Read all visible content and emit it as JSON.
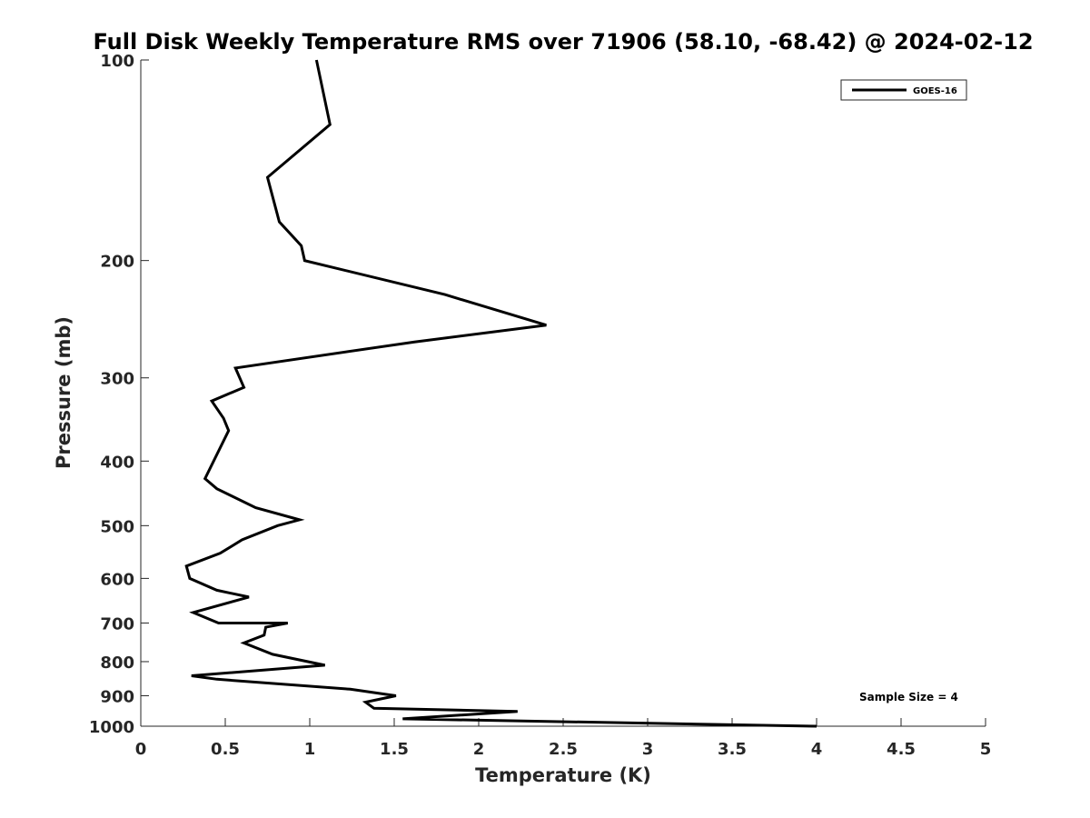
{
  "chart_data": {
    "type": "line",
    "title": "Full Disk Weekly Temperature RMS over 71906 (58.10, -68.42) @ 2024-02-12",
    "xlabel": "Temperature (K)",
    "ylabel": "Pressure (mb)",
    "xlim": [
      0,
      5
    ],
    "ylim": [
      100,
      1000
    ],
    "y_scale": "log",
    "y_reversed": true,
    "x_ticks": [
      "0",
      "0.5",
      "1",
      "1.5",
      "2",
      "2.5",
      "3",
      "3.5",
      "4",
      "4.5",
      "5"
    ],
    "x_tick_values": [
      0,
      0.5,
      1,
      1.5,
      2,
      2.5,
      3,
      3.5,
      4,
      4.5,
      5
    ],
    "y_ticks": [
      "100",
      "200",
      "300",
      "400",
      "500",
      "600",
      "700",
      "800",
      "900",
      "1000"
    ],
    "y_tick_values": [
      100,
      200,
      300,
      400,
      500,
      600,
      700,
      800,
      900,
      1000
    ],
    "grid": false,
    "legend_position": "top-right",
    "series": [
      {
        "name": "GOES-16",
        "color": "#000000",
        "points": [
          [
            1.04,
            100
          ],
          [
            1.12,
            125
          ],
          [
            0.75,
            150
          ],
          [
            0.82,
            175
          ],
          [
            0.95,
            190
          ],
          [
            0.97,
            200
          ],
          [
            1.8,
            225
          ],
          [
            2.4,
            250
          ],
          [
            1.62,
            265
          ],
          [
            0.56,
            290
          ],
          [
            0.61,
            310
          ],
          [
            0.42,
            325
          ],
          [
            0.49,
            345
          ],
          [
            0.52,
            360
          ],
          [
            0.38,
            425
          ],
          [
            0.45,
            440
          ],
          [
            0.68,
            470
          ],
          [
            0.94,
            490
          ],
          [
            0.81,
            500
          ],
          [
            0.6,
            525
          ],
          [
            0.47,
            550
          ],
          [
            0.27,
            575
          ],
          [
            0.29,
            600
          ],
          [
            0.45,
            625
          ],
          [
            0.64,
            640
          ],
          [
            0.31,
            675
          ],
          [
            0.46,
            700
          ],
          [
            0.87,
            700
          ],
          [
            0.74,
            710
          ],
          [
            0.73,
            730
          ],
          [
            0.61,
            750
          ],
          [
            0.78,
            780
          ],
          [
            1.09,
            810
          ],
          [
            0.3,
            840
          ],
          [
            0.45,
            850
          ],
          [
            1.24,
            880
          ],
          [
            1.51,
            900
          ],
          [
            1.33,
            920
          ],
          [
            1.38,
            940
          ],
          [
            2.23,
            950
          ],
          [
            1.55,
            975
          ],
          [
            4.0,
            1000
          ]
        ]
      }
    ],
    "annotations": [
      "Sample Size = 4"
    ]
  }
}
